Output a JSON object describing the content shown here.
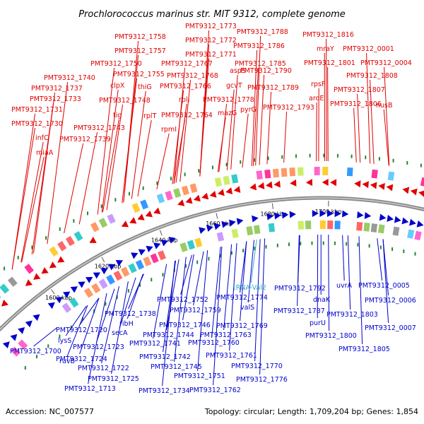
{
  "title": "Prochlorococcus marinus str. MIT 9312, complete genome",
  "footer": {
    "accession": "Accession: NC_007577",
    "summary": "Topology: circular; Length: 1,709,204 bp; Genes: 1,854"
  },
  "colors": {
    "forward": "#e00000",
    "reverse": "#0000cc",
    "rna": "#33aacc",
    "backbone": "#888888",
    "ticks": "#228833"
  },
  "ticks": [
    "1600 kbp",
    "1620 kbp",
    "1640 kbp",
    "1660 kbp",
    "1680 kbp",
    "1700 kbp"
  ],
  "forward_labels": [
    "PMT9312_1773",
    "PMT9312_1788",
    "PMT9312_1816",
    "PMT9312_1758",
    "PMT9312_1772",
    "PMT9312_1786",
    "mraY",
    "PMT9312_0001",
    "PMT9312_1757",
    "PMT9312_1771",
    "PMT9312_1801",
    "PMT9312_0004",
    "PMT9312_1750",
    "PMT9312_1767",
    "PMT9312_1785",
    "PMT9312_1808",
    "PMT9312_1740",
    "PMT9312_1755",
    "PMT9312_1768",
    "aspS",
    "PMT9312_1790",
    "rpsF",
    "PMT9312_1737",
    "clpX",
    "thiG",
    "PMT9312_1766",
    "gcvT",
    "PMT9312_1789",
    "PMT9312_1807",
    "PMT9312_1733",
    "PMT9312_1748",
    "rplI",
    "PMT9312_1778",
    "aroE",
    "PMT9312_1731",
    "tig",
    "rplT",
    "mazG",
    "pyrG",
    "PMT9312_1793",
    "PMT9312_1806",
    "nusB",
    "PMT9312_1764",
    "PMT9312_1730",
    "PMT9312_1743",
    "rpmI",
    "infC",
    "PMT9312_1739",
    "miaA"
  ],
  "reverse_labels": [
    "tRNA-Val2",
    "PMT9312_1792",
    "uvrA",
    "PMT9312_0005",
    "PMT9312_1752",
    "PMT9312_1774",
    "dnaK",
    "PMT9312_0006",
    "PMT9312_1759",
    "valS",
    "PMT9312_1787",
    "PMT9312_1738",
    "PMT9312_1769",
    "PMT9312_1803",
    "ribH",
    "PMT9312_1746",
    "purU",
    "PMT9312_0007",
    "PMT9312_1720",
    "secA",
    "PMT9312_1744",
    "PMT9312_1763",
    "PMT9312_1800",
    "lysS",
    "PMT9312_1741",
    "PMT9312_1760",
    "PMT9312_1723",
    "PMT9312_1805",
    "PMT9312_1700",
    "ruvB",
    "PMT9312_1742",
    "PMT9312_1761",
    "PMT9312_1724",
    "PMT9312_1745",
    "PMT9312_1770",
    "PMT9312_1722",
    "PMT9312_1751",
    "PMT9312_1776",
    "PMT9312_1725",
    "PMT9312_1713",
    "PMT9312_1734",
    "PMT9312_1762"
  ]
}
